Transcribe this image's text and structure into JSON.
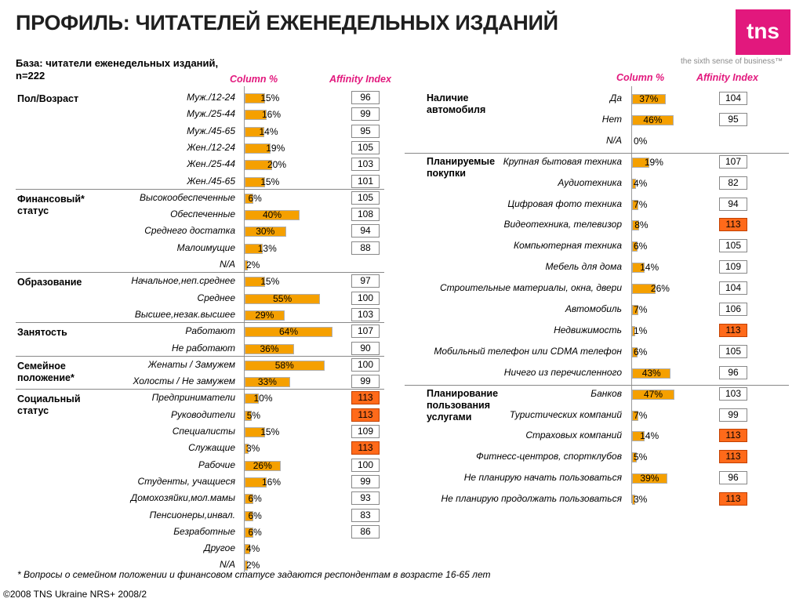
{
  "title": "ПРОФИЛЬ: ЧИТАТЕЛЕЙ ЕЖЕНЕДЕЛЬНЫХ ИЗДАНИЙ",
  "logo": {
    "text": "tns",
    "tagline": "the sixth sense of business™"
  },
  "base_note": [
    "База: читатели еженедельных изданий,",
    "n=222"
  ],
  "headers": {
    "column": "Column %",
    "affinity": "Affinity Index"
  },
  "footnote": "* Вопросы о семейном положении и финансовом статусе задаются респондентам в возрасте 16-65 лет",
  "copyright": "©2008 TNS Ukraine  NRS+ 2008/2",
  "colors": {
    "bar": "#f5a000",
    "affinity_high": "#ff6a1a",
    "brand": "#e2187d"
  },
  "chart_data": [
    {
      "type": "bar",
      "panel": "left",
      "sections": [
        {
          "name": "Пол/Возраст",
          "rows": [
            {
              "label": "Муж./12-24",
              "pct": 15,
              "aff": 96
            },
            {
              "label": "Муж./25-44",
              "pct": 16,
              "aff": 99
            },
            {
              "label": "Муж./45-65",
              "pct": 14,
              "aff": 95
            },
            {
              "label": "Жен./12-24",
              "pct": 19,
              "aff": 105
            },
            {
              "label": "Жен./25-44",
              "pct": 20,
              "aff": 103
            },
            {
              "label": "Жен./45-65",
              "pct": 15,
              "aff": 101
            }
          ]
        },
        {
          "name": "Финансовый* статус",
          "rows": [
            {
              "label": "Высокообеспеченные",
              "pct": 6,
              "aff": 105
            },
            {
              "label": "Обеспеченные",
              "pct": 40,
              "aff": 108
            },
            {
              "label": "Среднего достатка",
              "pct": 30,
              "aff": 94
            },
            {
              "label": "Малоимущие",
              "pct": 13,
              "aff": 88
            },
            {
              "label": "N/A",
              "pct": 2,
              "aff": null
            }
          ]
        },
        {
          "name": "Образование",
          "rows": [
            {
              "label": "Начальное,неп.среднее",
              "pct": 15,
              "aff": 97
            },
            {
              "label": "Среднее",
              "pct": 55,
              "aff": 100
            },
            {
              "label": "Высшее,незак.высшее",
              "pct": 29,
              "aff": 103
            }
          ]
        },
        {
          "name": "Занятость",
          "rows": [
            {
              "label": "Работают",
              "pct": 64,
              "aff": 107
            },
            {
              "label": "Не работают",
              "pct": 36,
              "aff": 90
            }
          ]
        },
        {
          "name": "Семейное положение*",
          "rows": [
            {
              "label": "Женаты / Замужем",
              "pct": 58,
              "aff": 100
            },
            {
              "label": "Холосты / Не замужем",
              "pct": 33,
              "aff": 99
            }
          ]
        },
        {
          "name": "Социальный статус",
          "rows": [
            {
              "label": "Предприниматели",
              "pct": 10,
              "aff": 113,
              "high": true
            },
            {
              "label": "Руководители",
              "pct": 5,
              "aff": 113,
              "high": true
            },
            {
              "label": "Специалисты",
              "pct": 15,
              "aff": 109
            },
            {
              "label": "Служащие",
              "pct": 3,
              "aff": 113,
              "high": true
            },
            {
              "label": "Рабочие",
              "pct": 26,
              "aff": 100
            },
            {
              "label": "Студенты, учащиеся",
              "pct": 16,
              "aff": 99
            },
            {
              "label": "Домохозяйки,мол.мамы",
              "pct": 6,
              "aff": 93
            },
            {
              "label": "Пенсионеры,инвал.",
              "pct": 6,
              "aff": 83
            },
            {
              "label": "Безработные",
              "pct": 6,
              "aff": 86
            },
            {
              "label": "Другое",
              "pct": 4,
              "aff": null
            },
            {
              "label": "N/A",
              "pct": 2,
              "aff": null
            }
          ]
        }
      ]
    },
    {
      "type": "bar",
      "panel": "right",
      "sections": [
        {
          "name": "Наличие автомобиля",
          "rows": [
            {
              "label": "Да",
              "pct": 37,
              "aff": 104
            },
            {
              "label": "Нет",
              "pct": 46,
              "aff": 95
            },
            {
              "label": "N/A",
              "pct": 0,
              "aff": null
            }
          ]
        },
        {
          "name": "Планируемые покупки",
          "rows": [
            {
              "label": "Крупная бытовая техника",
              "pct": 19,
              "aff": 107
            },
            {
              "label": "Аудиотехника",
              "pct": 4,
              "aff": 82
            },
            {
              "label": "Цифровая фото техника",
              "pct": 7,
              "aff": 94
            },
            {
              "label": "Видеотехника, телевизор",
              "pct": 8,
              "aff": 113,
              "high": true
            },
            {
              "label": "Компьютерная техника",
              "pct": 6,
              "aff": 105
            },
            {
              "label": "Мебель для дома",
              "pct": 14,
              "aff": 109
            },
            {
              "label": "Строительные материалы, окна, двери",
              "pct": 26,
              "aff": 104
            },
            {
              "label": "Автомобиль",
              "pct": 7,
              "aff": 106
            },
            {
              "label": "Недвижимость",
              "pct": 1,
              "aff": 113,
              "high": true
            },
            {
              "label": "Мобильный телефон или CDMA телефон",
              "pct": 6,
              "aff": 105
            },
            {
              "label": "Ничего из перечисленного",
              "pct": 43,
              "aff": 96
            }
          ]
        },
        {
          "name": "Планирование пользования услугами",
          "rows": [
            {
              "label": "Банков",
              "pct": 47,
              "aff": 103
            },
            {
              "label": "Туристических компаний",
              "pct": 7,
              "aff": 99
            },
            {
              "label": "Страховых компаний",
              "pct": 14,
              "aff": 113,
              "high": true
            },
            {
              "label": "Фитнесс-центров, спортклубов",
              "pct": 5,
              "aff": 113,
              "high": true
            },
            {
              "label": "Не планирую начать пользоваться",
              "pct": 39,
              "aff": 96
            },
            {
              "label": "Не планирую продолжать пользоваться",
              "pct": 3,
              "aff": 113,
              "high": true
            }
          ]
        }
      ]
    }
  ]
}
